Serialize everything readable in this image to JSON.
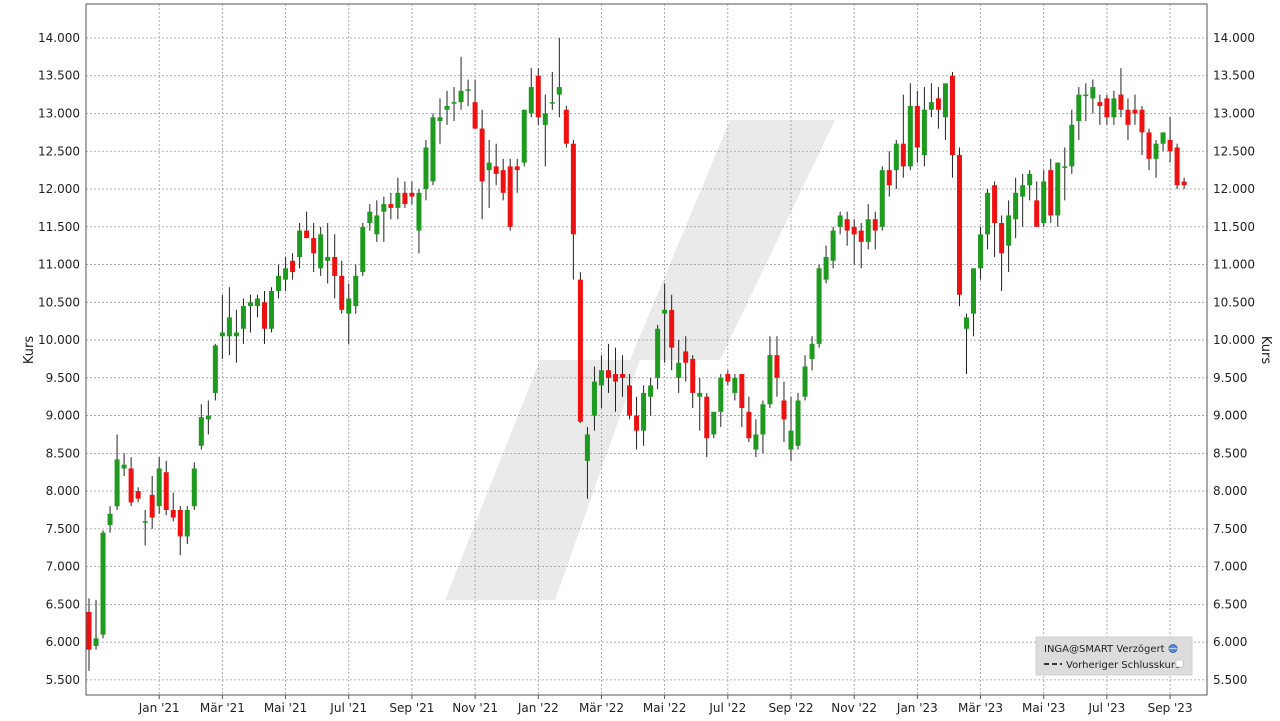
{
  "chart_data": {
    "type": "candlestick",
    "ylabel_left": "Kurs",
    "ylabel_right": "Kurs",
    "ylim": [
      5300,
      14450
    ],
    "y_ticks": [
      5500,
      6000,
      6500,
      7000,
      7500,
      8000,
      8500,
      9000,
      9500,
      10000,
      10500,
      11000,
      11500,
      12000,
      12500,
      13000,
      13500,
      14000
    ],
    "y_tick_labels": [
      "5.500",
      "6.000",
      "6.500",
      "7.000",
      "7.500",
      "8.000",
      "8.500",
      "9.000",
      "9.500",
      "10.000",
      "10.500",
      "11.000",
      "11.500",
      "12.000",
      "12.500",
      "13.000",
      "13.500",
      "14.000"
    ],
    "x_ticks": [
      {
        "label": "Jan '21",
        "index": 10
      },
      {
        "label": "Mär '21",
        "index": 19
      },
      {
        "label": "Mai '21",
        "index": 28
      },
      {
        "label": "Jul '21",
        "index": 37
      },
      {
        "label": "Sep '21",
        "index": 46
      },
      {
        "label": "Nov '21",
        "index": 55
      },
      {
        "label": "Jan '22",
        "index": 64
      },
      {
        "label": "Mär '22",
        "index": 73
      },
      {
        "label": "Mai '22",
        "index": 82
      },
      {
        "label": "Jul '22",
        "index": 91
      },
      {
        "label": "Sep '22",
        "index": 100
      },
      {
        "label": "Nov '22",
        "index": 109
      },
      {
        "label": "Jan '23",
        "index": 118
      },
      {
        "label": "Mär '23",
        "index": 127
      },
      {
        "label": "Mai '23",
        "index": 136
      },
      {
        "label": "Jul '23",
        "index": 145
      },
      {
        "label": "Sep '23",
        "index": 154
      }
    ],
    "grid": true,
    "legend_position": "bottom-right",
    "legend": [
      {
        "label": "INGA@SMART Verzögert",
        "icon": "globe-icon"
      },
      {
        "label": "Vorheriger Schlusskurs",
        "icon": "dashed-line-icon"
      }
    ],
    "up_color": "#1e9a1e",
    "down_color": "#ee1111",
    "candles": [
      {
        "o": 6400,
        "h": 6580,
        "l": 5620,
        "c": 5900
      },
      {
        "o": 5950,
        "h": 6560,
        "l": 5900,
        "c": 6050
      },
      {
        "o": 6100,
        "h": 7480,
        "l": 6050,
        "c": 7450
      },
      {
        "o": 7550,
        "h": 7800,
        "l": 7450,
        "c": 7700
      },
      {
        "o": 7800,
        "h": 8750,
        "l": 7750,
        "c": 8420
      },
      {
        "o": 8300,
        "h": 8500,
        "l": 8200,
        "c": 8350
      },
      {
        "o": 8300,
        "h": 8450,
        "l": 7800,
        "c": 7850
      },
      {
        "o": 8000,
        "h": 8050,
        "l": 7850,
        "c": 7900
      },
      {
        "o": 7580,
        "h": 7750,
        "l": 7280,
        "c": 7600
      },
      {
        "o": 7950,
        "h": 8200,
        "l": 7500,
        "c": 7650
      },
      {
        "o": 7800,
        "h": 8450,
        "l": 7700,
        "c": 8300
      },
      {
        "o": 8250,
        "h": 8400,
        "l": 7680,
        "c": 7750
      },
      {
        "o": 7750,
        "h": 7980,
        "l": 7600,
        "c": 7650
      },
      {
        "o": 7750,
        "h": 7800,
        "l": 7150,
        "c": 7400
      },
      {
        "o": 7400,
        "h": 7800,
        "l": 7300,
        "c": 7750
      },
      {
        "o": 7800,
        "h": 8380,
        "l": 7750,
        "c": 8300
      },
      {
        "o": 8600,
        "h": 9150,
        "l": 8550,
        "c": 8980
      },
      {
        "o": 8950,
        "h": 9200,
        "l": 8750,
        "c": 9000
      },
      {
        "o": 9300,
        "h": 9950,
        "l": 9200,
        "c": 9930
      },
      {
        "o": 10050,
        "h": 10600,
        "l": 9750,
        "c": 10100
      },
      {
        "o": 10050,
        "h": 10700,
        "l": 9800,
        "c": 10300
      },
      {
        "o": 10050,
        "h": 10400,
        "l": 9700,
        "c": 10100
      },
      {
        "o": 10150,
        "h": 10550,
        "l": 9950,
        "c": 10450
      },
      {
        "o": 10450,
        "h": 10600,
        "l": 10100,
        "c": 10500
      },
      {
        "o": 10450,
        "h": 10600,
        "l": 10300,
        "c": 10550
      },
      {
        "o": 10500,
        "h": 10650,
        "l": 9950,
        "c": 10150
      },
      {
        "o": 10150,
        "h": 10700,
        "l": 10100,
        "c": 10650
      },
      {
        "o": 10650,
        "h": 11000,
        "l": 10550,
        "c": 10850
      },
      {
        "o": 10800,
        "h": 11100,
        "l": 10650,
        "c": 10950
      },
      {
        "o": 11050,
        "h": 11150,
        "l": 10800,
        "c": 10900
      },
      {
        "o": 11100,
        "h": 11550,
        "l": 10950,
        "c": 11450
      },
      {
        "o": 11450,
        "h": 11700,
        "l": 11350,
        "c": 11350
      },
      {
        "o": 11350,
        "h": 11550,
        "l": 10900,
        "c": 11150
      },
      {
        "o": 10950,
        "h": 11500,
        "l": 10850,
        "c": 11400
      },
      {
        "o": 11050,
        "h": 11550,
        "l": 10750,
        "c": 11100
      },
      {
        "o": 11100,
        "h": 11400,
        "l": 10550,
        "c": 10850
      },
      {
        "o": 10850,
        "h": 11050,
        "l": 10350,
        "c": 10400
      },
      {
        "o": 10350,
        "h": 10750,
        "l": 9950,
        "c": 10550
      },
      {
        "o": 10450,
        "h": 11000,
        "l": 10350,
        "c": 10850
      },
      {
        "o": 10900,
        "h": 11550,
        "l": 10850,
        "c": 11500
      },
      {
        "o": 11550,
        "h": 11800,
        "l": 11450,
        "c": 11700
      },
      {
        "o": 11400,
        "h": 11850,
        "l": 11300,
        "c": 11650
      },
      {
        "o": 11700,
        "h": 11900,
        "l": 11300,
        "c": 11800
      },
      {
        "o": 11800,
        "h": 11950,
        "l": 11600,
        "c": 11750
      },
      {
        "o": 11750,
        "h": 12150,
        "l": 11600,
        "c": 11950
      },
      {
        "o": 11950,
        "h": 12100,
        "l": 11750,
        "c": 11800
      },
      {
        "o": 11950,
        "h": 12100,
        "l": 11800,
        "c": 11900
      },
      {
        "o": 11450,
        "h": 12000,
        "l": 11150,
        "c": 11950
      },
      {
        "o": 12000,
        "h": 12650,
        "l": 11850,
        "c": 12550
      },
      {
        "o": 12100,
        "h": 13000,
        "l": 12050,
        "c": 12950
      },
      {
        "o": 12900,
        "h": 13200,
        "l": 12600,
        "c": 12950
      },
      {
        "o": 13050,
        "h": 13300,
        "l": 12850,
        "c": 13100
      },
      {
        "o": 13150,
        "h": 13350,
        "l": 12900,
        "c": 13150
      },
      {
        "o": 13150,
        "h": 13750,
        "l": 13050,
        "c": 13300
      },
      {
        "o": 13300,
        "h": 13450,
        "l": 13100,
        "c": 13320
      },
      {
        "o": 13150,
        "h": 13450,
        "l": 12850,
        "c": 12800
      },
      {
        "o": 12800,
        "h": 13050,
        "l": 11600,
        "c": 12100
      },
      {
        "o": 12250,
        "h": 12650,
        "l": 11750,
        "c": 12350
      },
      {
        "o": 12300,
        "h": 12600,
        "l": 12050,
        "c": 12200
      },
      {
        "o": 12250,
        "h": 12400,
        "l": 11850,
        "c": 11950
      },
      {
        "o": 12300,
        "h": 12400,
        "l": 11450,
        "c": 11500
      },
      {
        "o": 12300,
        "h": 12400,
        "l": 11950,
        "c": 12250
      },
      {
        "o": 12350,
        "h": 13050,
        "l": 12300,
        "c": 13050
      },
      {
        "o": 13000,
        "h": 13600,
        "l": 12950,
        "c": 13350
      },
      {
        "o": 13500,
        "h": 13600,
        "l": 12850,
        "c": 12950
      },
      {
        "o": 12850,
        "h": 13250,
        "l": 12300,
        "c": 13000
      },
      {
        "o": 13150,
        "h": 13550,
        "l": 13050,
        "c": 13150
      },
      {
        "o": 13250,
        "h": 14000,
        "l": 12950,
        "c": 13350
      },
      {
        "o": 13050,
        "h": 13100,
        "l": 12550,
        "c": 12600
      },
      {
        "o": 12600,
        "h": 12650,
        "l": 10800,
        "c": 11400
      },
      {
        "o": 10800,
        "h": 10900,
        "l": 8900,
        "c": 8920
      },
      {
        "o": 8400,
        "h": 8850,
        "l": 7900,
        "c": 8750
      },
      {
        "o": 9000,
        "h": 9650,
        "l": 8800,
        "c": 9450
      },
      {
        "o": 9400,
        "h": 9800,
        "l": 9100,
        "c": 9600
      },
      {
        "o": 9600,
        "h": 9950,
        "l": 9300,
        "c": 9500
      },
      {
        "o": 9550,
        "h": 9900,
        "l": 9050,
        "c": 9450
      },
      {
        "o": 9550,
        "h": 9800,
        "l": 9250,
        "c": 9500
      },
      {
        "o": 9400,
        "h": 9550,
        "l": 8950,
        "c": 9000
      },
      {
        "o": 9000,
        "h": 9250,
        "l": 8550,
        "c": 8800
      },
      {
        "o": 8800,
        "h": 9400,
        "l": 8600,
        "c": 9300
      },
      {
        "o": 9250,
        "h": 9500,
        "l": 9000,
        "c": 9400
      },
      {
        "o": 9500,
        "h": 10200,
        "l": 9350,
        "c": 10150
      },
      {
        "o": 10350,
        "h": 10750,
        "l": 9700,
        "c": 10400
      },
      {
        "o": 10400,
        "h": 10600,
        "l": 9600,
        "c": 9900
      },
      {
        "o": 9500,
        "h": 10000,
        "l": 9300,
        "c": 9700
      },
      {
        "o": 9850,
        "h": 10050,
        "l": 9450,
        "c": 9700
      },
      {
        "o": 9750,
        "h": 9800,
        "l": 9100,
        "c": 9300
      },
      {
        "o": 9250,
        "h": 9500,
        "l": 8800,
        "c": 9300
      },
      {
        "o": 9250,
        "h": 9300,
        "l": 8450,
        "c": 8700
      },
      {
        "o": 8750,
        "h": 9000,
        "l": 8700,
        "c": 9050
      },
      {
        "o": 9050,
        "h": 9550,
        "l": 8850,
        "c": 9500
      },
      {
        "o": 9550,
        "h": 9600,
        "l": 9400,
        "c": 9450
      },
      {
        "o": 9300,
        "h": 9550,
        "l": 9200,
        "c": 9500
      },
      {
        "o": 9550,
        "h": 9550,
        "l": 8850,
        "c": 9100
      },
      {
        "o": 9050,
        "h": 9250,
        "l": 8650,
        "c": 8700
      },
      {
        "o": 8550,
        "h": 8950,
        "l": 8450,
        "c": 8750
      },
      {
        "o": 8750,
        "h": 9200,
        "l": 8500,
        "c": 9150
      },
      {
        "o": 9150,
        "h": 10050,
        "l": 9100,
        "c": 9800
      },
      {
        "o": 9800,
        "h": 10050,
        "l": 9250,
        "c": 9500
      },
      {
        "o": 9200,
        "h": 9450,
        "l": 8650,
        "c": 8950
      },
      {
        "o": 8550,
        "h": 9250,
        "l": 8400,
        "c": 8800
      },
      {
        "o": 8600,
        "h": 9300,
        "l": 8550,
        "c": 9200
      },
      {
        "o": 9250,
        "h": 9800,
        "l": 9200,
        "c": 9650
      },
      {
        "o": 9750,
        "h": 10050,
        "l": 9600,
        "c": 9950
      },
      {
        "o": 9950,
        "h": 11000,
        "l": 9900,
        "c": 10950
      },
      {
        "o": 10800,
        "h": 11250,
        "l": 10750,
        "c": 11100
      },
      {
        "o": 11050,
        "h": 11500,
        "l": 10950,
        "c": 11450
      },
      {
        "o": 11500,
        "h": 11700,
        "l": 11400,
        "c": 11650
      },
      {
        "o": 11600,
        "h": 11700,
        "l": 11250,
        "c": 11450
      },
      {
        "o": 11500,
        "h": 11600,
        "l": 11000,
        "c": 11400
      },
      {
        "o": 11450,
        "h": 11550,
        "l": 10950,
        "c": 11300
      },
      {
        "o": 11300,
        "h": 11800,
        "l": 11200,
        "c": 11600
      },
      {
        "o": 11600,
        "h": 11700,
        "l": 11200,
        "c": 11450
      },
      {
        "o": 11500,
        "h": 12300,
        "l": 11450,
        "c": 12250
      },
      {
        "o": 12250,
        "h": 12500,
        "l": 11900,
        "c": 12050
      },
      {
        "o": 12250,
        "h": 12650,
        "l": 12000,
        "c": 12600
      },
      {
        "o": 12600,
        "h": 13250,
        "l": 12150,
        "c": 12300
      },
      {
        "o": 12300,
        "h": 13400,
        "l": 12250,
        "c": 13100
      },
      {
        "o": 13100,
        "h": 13300,
        "l": 12350,
        "c": 12550
      },
      {
        "o": 12450,
        "h": 13350,
        "l": 12300,
        "c": 13050
      },
      {
        "o": 13050,
        "h": 13400,
        "l": 12950,
        "c": 13150
      },
      {
        "o": 13200,
        "h": 13350,
        "l": 12800,
        "c": 13050
      },
      {
        "o": 12950,
        "h": 13350,
        "l": 12650,
        "c": 13400
      },
      {
        "o": 13500,
        "h": 13550,
        "l": 12150,
        "c": 12450
      },
      {
        "o": 12450,
        "h": 12550,
        "l": 10450,
        "c": 10600
      },
      {
        "o": 10150,
        "h": 10350,
        "l": 9550,
        "c": 10300
      },
      {
        "o": 10350,
        "h": 10950,
        "l": 10050,
        "c": 10950
      },
      {
        "o": 10950,
        "h": 11500,
        "l": 10800,
        "c": 11400
      },
      {
        "o": 11400,
        "h": 12000,
        "l": 11200,
        "c": 11950
      },
      {
        "o": 12050,
        "h": 12100,
        "l": 11100,
        "c": 11550
      },
      {
        "o": 11550,
        "h": 11650,
        "l": 10650,
        "c": 11150
      },
      {
        "o": 11250,
        "h": 11850,
        "l": 10900,
        "c": 11650
      },
      {
        "o": 11600,
        "h": 12150,
        "l": 11350,
        "c": 11950
      },
      {
        "o": 11900,
        "h": 12200,
        "l": 11500,
        "c": 12050
      },
      {
        "o": 12050,
        "h": 12250,
        "l": 11850,
        "c": 12200
      },
      {
        "o": 11850,
        "h": 12100,
        "l": 11500,
        "c": 11500
      },
      {
        "o": 11550,
        "h": 12250,
        "l": 11500,
        "c": 12100
      },
      {
        "o": 12250,
        "h": 12400,
        "l": 11550,
        "c": 11650
      },
      {
        "o": 11650,
        "h": 12350,
        "l": 11500,
        "c": 12350
      },
      {
        "o": 12300,
        "h": 12550,
        "l": 11850,
        "c": 12300
      },
      {
        "o": 12300,
        "h": 13050,
        "l": 12200,
        "c": 12850
      },
      {
        "o": 12900,
        "h": 13350,
        "l": 12650,
        "c": 13250
      },
      {
        "o": 13250,
        "h": 13400,
        "l": 12900,
        "c": 13250
      },
      {
        "o": 13200,
        "h": 13450,
        "l": 13000,
        "c": 13350
      },
      {
        "o": 13150,
        "h": 13250,
        "l": 12850,
        "c": 13100
      },
      {
        "o": 13200,
        "h": 13250,
        "l": 12850,
        "c": 12950
      },
      {
        "o": 12950,
        "h": 13300,
        "l": 12850,
        "c": 13200
      },
      {
        "o": 13250,
        "h": 13600,
        "l": 12950,
        "c": 13050
      },
      {
        "o": 13050,
        "h": 13200,
        "l": 12650,
        "c": 12850
      },
      {
        "o": 13050,
        "h": 13250,
        "l": 12850,
        "c": 13000
      },
      {
        "o": 13050,
        "h": 13100,
        "l": 12450,
        "c": 12750
      },
      {
        "o": 12750,
        "h": 12800,
        "l": 12250,
        "c": 12400
      },
      {
        "o": 12400,
        "h": 12650,
        "l": 12150,
        "c": 12600
      },
      {
        "o": 12600,
        "h": 12750,
        "l": 12500,
        "c": 12750
      },
      {
        "o": 12650,
        "h": 12950,
        "l": 12350,
        "c": 12500
      },
      {
        "o": 12550,
        "h": 12600,
        "l": 12000,
        "c": 12050
      },
      {
        "o": 12100,
        "h": 12150,
        "l": 12000,
        "c": 12050
      }
    ]
  }
}
